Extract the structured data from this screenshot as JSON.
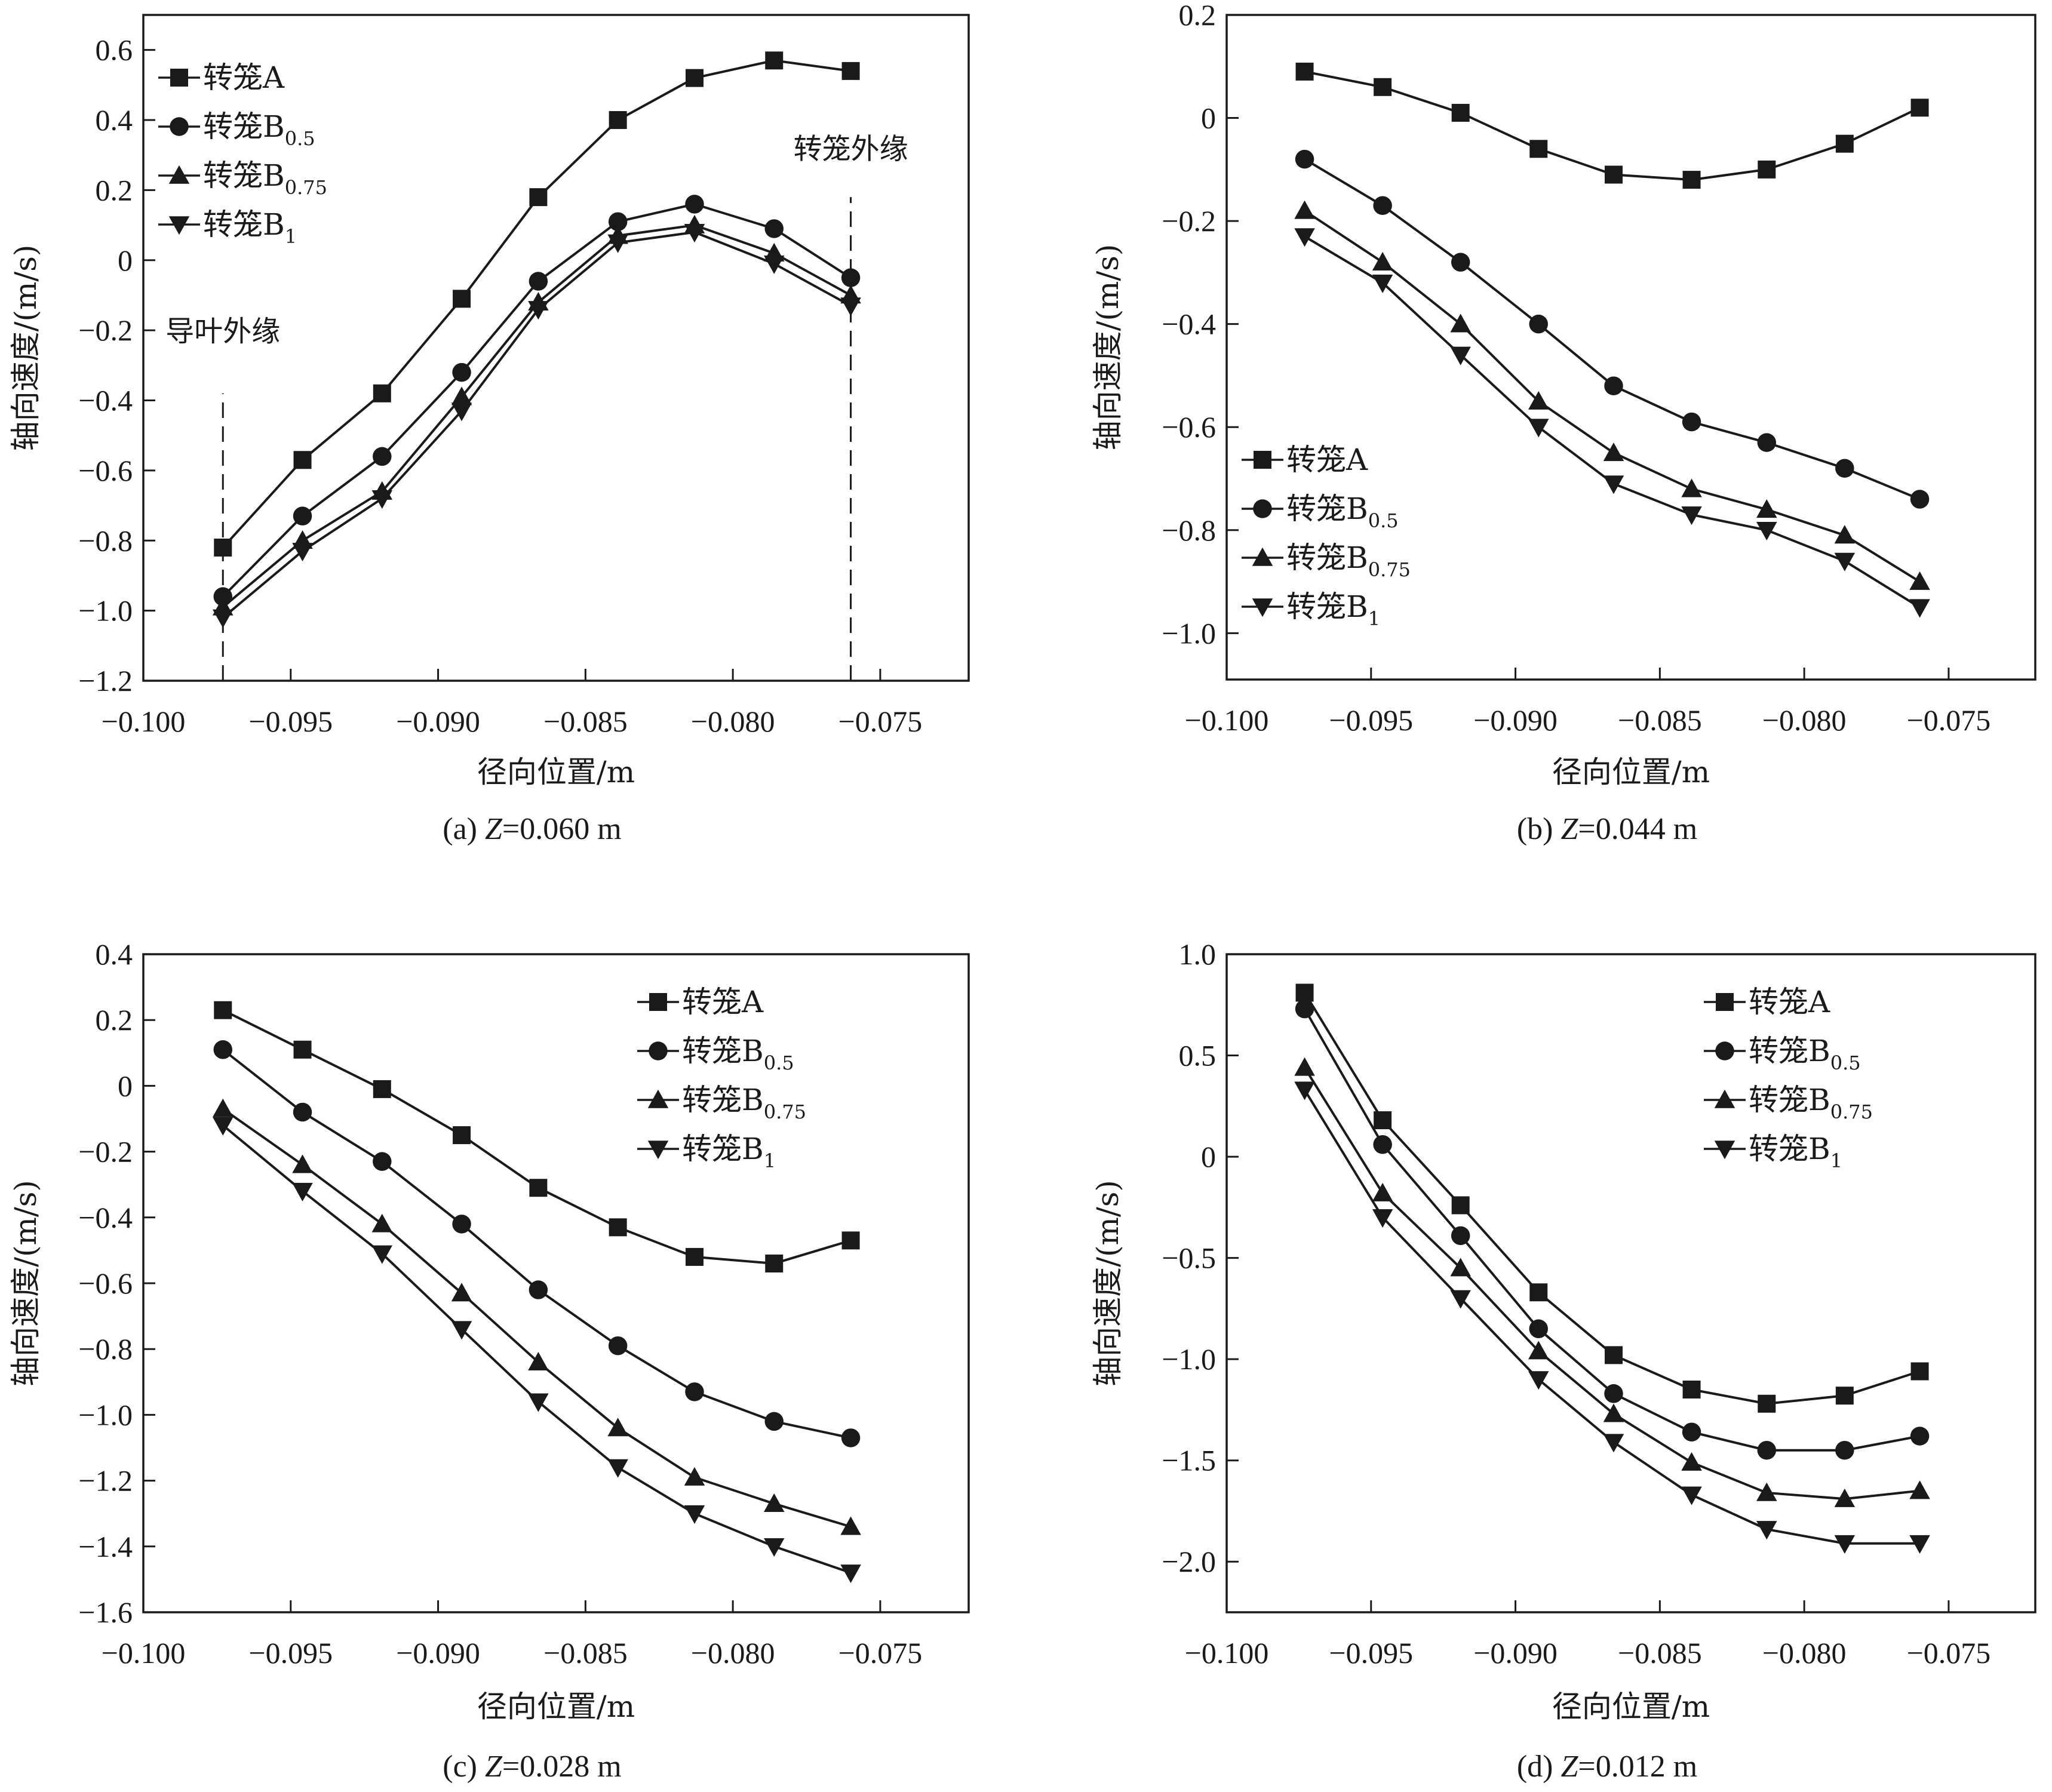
{
  "figure": {
    "xlabel": "径向位置/m",
    "ylabel": "轴向速度/(m/s)",
    "legend_base": "转笼",
    "series_meta": [
      {
        "name": "转笼A",
        "base": "转笼A",
        "sub": "",
        "marker": "square"
      },
      {
        "name": "转笼B0.5",
        "base": "转笼B",
        "sub": "0.5",
        "marker": "circle"
      },
      {
        "name": "转笼B0.75",
        "base": "转笼B",
        "sub": "0.75",
        "marker": "triangle-up"
      },
      {
        "name": "转笼B1",
        "base": "转笼B",
        "sub": "1",
        "marker": "triangle-down"
      }
    ],
    "line_color": "#1a1a1a"
  },
  "chart_data": [
    {
      "id": "a",
      "type": "line",
      "caption_prefix": "(a) ",
      "caption_var": "Z",
      "caption_suffix": "=0.060 m",
      "xlabel": "径向位置/m",
      "ylabel": "轴向速度/(m/s)",
      "xlim": [
        -0.1,
        -0.072
      ],
      "ylim": [
        -1.2,
        0.7
      ],
      "xticks": [
        -0.1,
        -0.095,
        -0.09,
        -0.085,
        -0.08,
        -0.075
      ],
      "xtick_labels": [
        "−0.100",
        "−0.095",
        "−0.090",
        "−0.085",
        "−0.080",
        "−0.075"
      ],
      "yticks": [
        -1.2,
        -1.0,
        -0.8,
        -0.6,
        -0.4,
        -0.2,
        0,
        0.2,
        0.4,
        0.6
      ],
      "ytick_labels": [
        "−1.2",
        "−1.0",
        "−0.8",
        "−0.6",
        "−0.4",
        "−0.2",
        "0",
        "0.2",
        "0.4",
        "0.6"
      ],
      "grid": false,
      "legend_position": "top-left",
      "x": [
        -0.0973,
        -0.0946,
        -0.0919,
        -0.0892,
        -0.0866,
        -0.0839,
        -0.0813,
        -0.0786,
        -0.076
      ],
      "series": [
        {
          "name": "转笼A",
          "values": [
            -0.82,
            -0.57,
            -0.38,
            -0.11,
            0.18,
            0.4,
            0.52,
            0.57,
            0.54
          ]
        },
        {
          "name": "转笼B0.5",
          "values": [
            -0.96,
            -0.73,
            -0.56,
            -0.32,
            -0.06,
            0.11,
            0.16,
            0.09,
            -0.05
          ]
        },
        {
          "name": "转笼B0.75",
          "values": [
            -0.99,
            -0.8,
            -0.66,
            -0.39,
            -0.12,
            0.07,
            0.1,
            0.02,
            -0.1
          ]
        },
        {
          "name": "转笼B1",
          "values": [
            -1.02,
            -0.83,
            -0.68,
            -0.43,
            -0.14,
            0.05,
            0.08,
            -0.01,
            -0.13
          ]
        }
      ],
      "annotations": [
        {
          "text": "导叶外缘",
          "x": -0.0973,
          "y": -0.23,
          "dashed_line_x": -0.0973,
          "dashed_from": -1.2,
          "dashed_to": -0.38
        },
        {
          "text": "转笼外缘",
          "x": -0.076,
          "y": 0.29,
          "dashed_line_x": -0.076,
          "dashed_from": -1.2,
          "dashed_to": 0.18
        }
      ]
    },
    {
      "id": "b",
      "type": "line",
      "caption_prefix": "(b) ",
      "caption_var": "Z",
      "caption_suffix": "=0.044 m",
      "xlabel": "径向位置/m",
      "ylabel": "轴向速度/(m/s)",
      "xlim": [
        -0.1,
        -0.072
      ],
      "ylim": [
        -1.09,
        0.2
      ],
      "xticks": [
        -0.1,
        -0.095,
        -0.09,
        -0.085,
        -0.08,
        -0.075
      ],
      "xtick_labels": [
        "−0.100",
        "−0.095",
        "−0.090",
        "−0.085",
        "−0.080",
        "−0.075"
      ],
      "yticks": [
        -1.0,
        -0.8,
        -0.6,
        -0.4,
        -0.2,
        0,
        0.2
      ],
      "ytick_labels": [
        "−1.0",
        "−0.8",
        "−0.6",
        "−0.4",
        "−0.2",
        "0",
        "0.2"
      ],
      "grid": false,
      "legend_position": "bottom-left",
      "x": [
        -0.0973,
        -0.0946,
        -0.0919,
        -0.0892,
        -0.0866,
        -0.0839,
        -0.0813,
        -0.0786,
        -0.076
      ],
      "series": [
        {
          "name": "转笼A",
          "values": [
            0.09,
            0.06,
            0.01,
            -0.06,
            -0.11,
            -0.12,
            -0.1,
            -0.05,
            0.02
          ]
        },
        {
          "name": "转笼B0.5",
          "values": [
            -0.08,
            -0.17,
            -0.28,
            -0.4,
            -0.52,
            -0.59,
            -0.63,
            -0.68,
            -0.74
          ]
        },
        {
          "name": "转笼B0.75",
          "values": [
            -0.18,
            -0.28,
            -0.4,
            -0.55,
            -0.65,
            -0.72,
            -0.76,
            -0.81,
            -0.9
          ]
        },
        {
          "name": "转笼B1",
          "values": [
            -0.23,
            -0.32,
            -0.46,
            -0.6,
            -0.71,
            -0.77,
            -0.8,
            -0.86,
            -0.95
          ]
        }
      ],
      "annotations": []
    },
    {
      "id": "c",
      "type": "line",
      "caption_prefix": "(c) ",
      "caption_var": "Z",
      "caption_suffix": "=0.028 m",
      "xlabel": "径向位置/m",
      "ylabel": "轴向速度/(m/s)",
      "xlim": [
        -0.1,
        -0.072
      ],
      "ylim": [
        -1.6,
        0.4
      ],
      "xticks": [
        -0.1,
        -0.095,
        -0.09,
        -0.085,
        -0.08,
        -0.075
      ],
      "xtick_labels": [
        "−0.100",
        "−0.095",
        "−0.090",
        "−0.085",
        "−0.080",
        "−0.075"
      ],
      "yticks": [
        -1.6,
        -1.4,
        -1.2,
        -1.0,
        -0.8,
        -0.6,
        -0.4,
        -0.2,
        0,
        0.2,
        0.4
      ],
      "ytick_labels": [
        "−1.6",
        "−1.4",
        "−1.2",
        "−1.0",
        "−0.8",
        "−0.6",
        "−0.4",
        "−0.2",
        "0",
        "0.2",
        "0.4"
      ],
      "grid": false,
      "legend_position": "top-right",
      "x": [
        -0.0973,
        -0.0946,
        -0.0919,
        -0.0892,
        -0.0866,
        -0.0839,
        -0.0813,
        -0.0786,
        -0.076
      ],
      "series": [
        {
          "name": "转笼A",
          "values": [
            0.23,
            0.11,
            -0.01,
            -0.15,
            -0.31,
            -0.43,
            -0.52,
            -0.54,
            -0.47
          ]
        },
        {
          "name": "转笼B0.5",
          "values": [
            0.11,
            -0.08,
            -0.23,
            -0.42,
            -0.62,
            -0.79,
            -0.93,
            -1.02,
            -1.07
          ]
        },
        {
          "name": "转笼B0.75",
          "values": [
            -0.07,
            -0.24,
            -0.42,
            -0.63,
            -0.84,
            -1.04,
            -1.19,
            -1.27,
            -1.34
          ]
        },
        {
          "name": "转笼B1",
          "values": [
            -0.12,
            -0.32,
            -0.51,
            -0.74,
            -0.96,
            -1.16,
            -1.3,
            -1.4,
            -1.48
          ]
        }
      ],
      "annotations": []
    },
    {
      "id": "d",
      "type": "line",
      "caption_prefix": "(d) ",
      "caption_var": "Z",
      "caption_suffix": "=0.012 m",
      "xlabel": "径向位置/m",
      "ylabel": "轴向速度/(m/s)",
      "xlim": [
        -0.1,
        -0.072
      ],
      "ylim": [
        -2.25,
        1.0
      ],
      "xticks": [
        -0.1,
        -0.095,
        -0.09,
        -0.085,
        -0.08,
        -0.075
      ],
      "xtick_labels": [
        "−0.100",
        "−0.095",
        "−0.090",
        "−0.085",
        "−0.080",
        "−0.075"
      ],
      "yticks": [
        -2.0,
        -1.5,
        -1.0,
        -0.5,
        0,
        0.5,
        1.0
      ],
      "ytick_labels": [
        "−2.0",
        "−1.5",
        "−1.0",
        "−0.5",
        "0",
        "0.5",
        "1.0"
      ],
      "grid": false,
      "legend_position": "top-right",
      "x": [
        -0.0973,
        -0.0946,
        -0.0919,
        -0.0892,
        -0.0866,
        -0.0839,
        -0.0813,
        -0.0786,
        -0.076
      ],
      "series": [
        {
          "name": "转笼A",
          "values": [
            0.81,
            0.18,
            -0.24,
            -0.67,
            -0.98,
            -1.15,
            -1.22,
            -1.18,
            -1.06
          ]
        },
        {
          "name": "转笼B0.5",
          "values": [
            0.73,
            0.06,
            -0.39,
            -0.85,
            -1.17,
            -1.36,
            -1.45,
            -1.45,
            -1.38
          ]
        },
        {
          "name": "转笼B0.75",
          "values": [
            0.44,
            -0.18,
            -0.55,
            -0.96,
            -1.27,
            -1.51,
            -1.66,
            -1.69,
            -1.65
          ]
        },
        {
          "name": "转笼B1",
          "values": [
            0.33,
            -0.3,
            -0.7,
            -1.1,
            -1.41,
            -1.67,
            -1.84,
            -1.91,
            -1.91
          ]
        }
      ],
      "annotations": []
    }
  ]
}
